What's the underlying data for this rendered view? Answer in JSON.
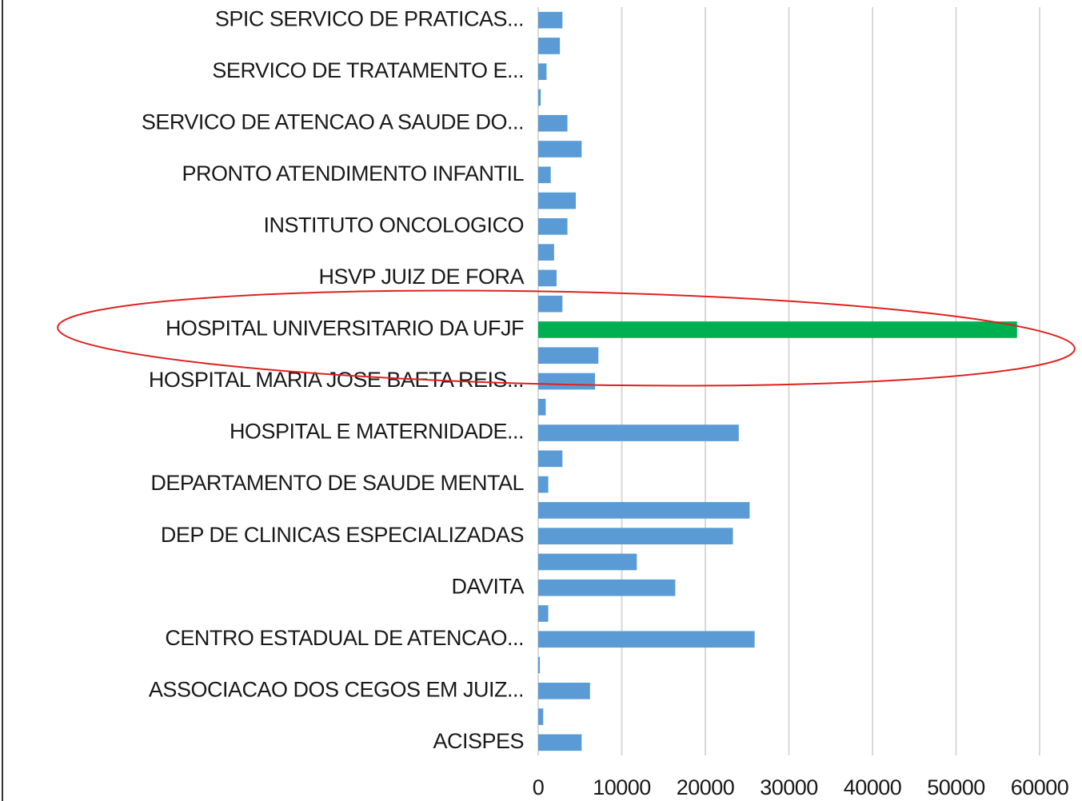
{
  "chart_data": {
    "type": "barh",
    "categories": [
      "SPIC SERVICO DE PRATICAS...",
      null,
      "SERVICO DE TRATAMENTO E...",
      null,
      "SERVICO DE ATENCAO A SAUDE DO...",
      null,
      "PRONTO ATENDIMENTO INFANTIL",
      null,
      "INSTITUTO ONCOLOGICO",
      null,
      "HSVP JUIZ DE FORA",
      null,
      "HOSPITAL UNIVERSITARIO DA UFJF",
      null,
      "HOSPITAL MARIA JOSE BAETA REIS...",
      null,
      "HOSPITAL E MATERNIDADE...",
      null,
      "DEPARTAMENTO DE SAUDE MENTAL",
      null,
      "DEP DE CLINICAS ESPECIALIZADAS",
      null,
      "DAVITA",
      null,
      "CENTRO ESTADUAL DE ATENCAO...",
      null,
      "ASSOCIACAO DOS CEGOS EM JUIZ...",
      null,
      "ACISPES"
    ],
    "values": [
      2900,
      2600,
      1000,
      300,
      3500,
      5200,
      1500,
      4500,
      3500,
      1900,
      2200,
      2900,
      57300,
      7200,
      6800,
      900,
      24000,
      2900,
      1200,
      25300,
      23300,
      11800,
      16400,
      1200,
      25900,
      200,
      6200,
      600,
      5200
    ],
    "colors": [
      "#5b9bd5",
      "#5b9bd5",
      "#5b9bd5",
      "#5b9bd5",
      "#5b9bd5",
      "#5b9bd5",
      "#5b9bd5",
      "#5b9bd5",
      "#5b9bd5",
      "#5b9bd5",
      "#5b9bd5",
      "#5b9bd5",
      "#00b050",
      "#5b9bd5",
      "#5b9bd5",
      "#5b9bd5",
      "#5b9bd5",
      "#5b9bd5",
      "#5b9bd5",
      "#5b9bd5",
      "#5b9bd5",
      "#5b9bd5",
      "#5b9bd5",
      "#5b9bd5",
      "#5b9bd5",
      "#5b9bd5",
      "#5b9bd5",
      "#5b9bd5",
      "#5b9bd5"
    ],
    "xlim": [
      0,
      60000
    ],
    "xticks": [
      0,
      10000,
      20000,
      30000,
      40000,
      50000,
      60000
    ],
    "grid": true
  }
}
